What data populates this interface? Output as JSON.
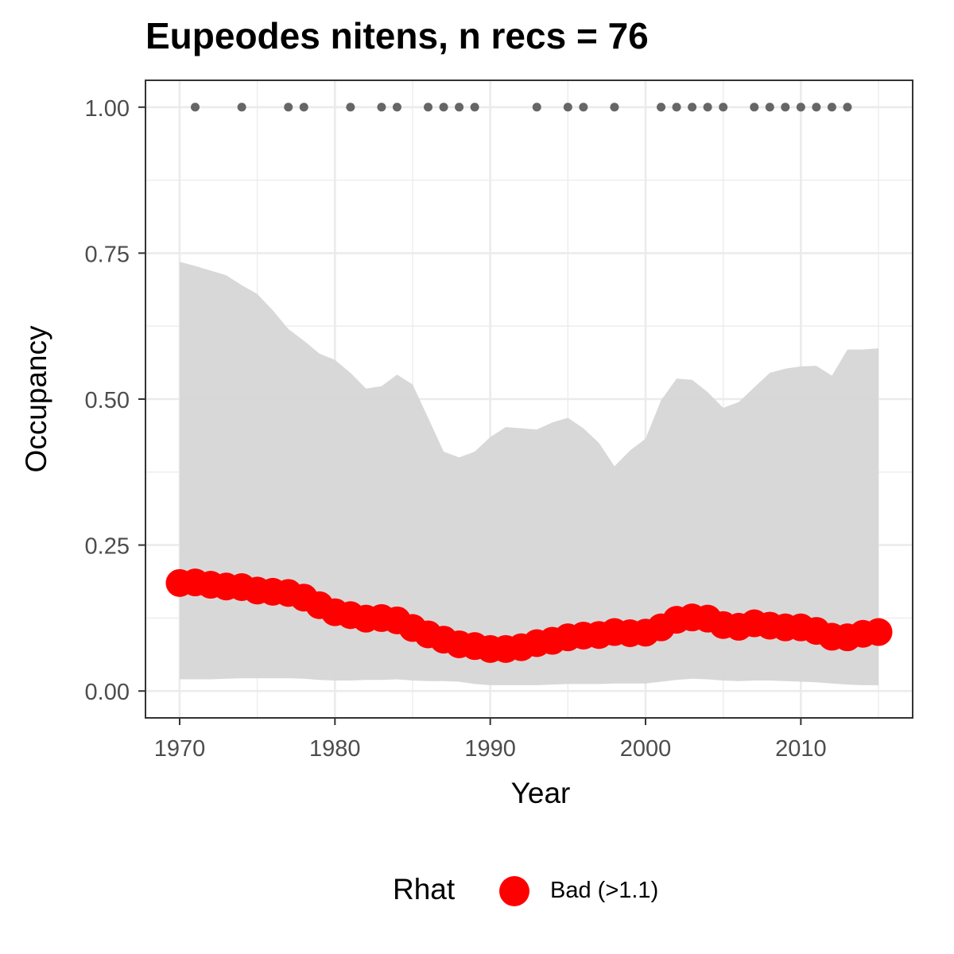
{
  "chart_data": {
    "type": "line",
    "title": "Eupeodes nitens, n recs = 76",
    "xlabel": "Year",
    "ylabel": "Occupancy",
    "xlim": [
      1967.8,
      1973.6
    ],
    "ylim": [
      -0.046,
      1.046
    ],
    "x_ticks": [
      1970,
      1980,
      1990,
      2000,
      2010
    ],
    "x_tick_labels": [
      "1970",
      "1980",
      "1990",
      "2000",
      "2010"
    ],
    "y_ticks": [
      0,
      0.25,
      0.5,
      0.75,
      1.0
    ],
    "y_tick_labels": [
      "0.00",
      "0.25",
      "0.50",
      "0.75",
      "1.00"
    ],
    "grid": true,
    "legend": {
      "position": "bottom",
      "title": "Rhat",
      "entries": [
        {
          "label": "Bad (>1.1)",
          "color": "#ff0000"
        }
      ]
    },
    "colors": {
      "mean": "#ff0000",
      "ribbon": "#d6d6d6",
      "records": "#666666",
      "grid": "#ebebeb",
      "border": "#333333"
    },
    "years": [
      1970,
      1971,
      1972,
      1973,
      1974,
      1975,
      1976,
      1977,
      1978,
      1979,
      1980,
      1981,
      1982,
      1983,
      1984,
      1985,
      1986,
      1987,
      1988,
      1989,
      1990,
      1991,
      1992,
      1993,
      1994,
      1995,
      1996,
      1997,
      1998,
      1999,
      2000,
      2001,
      2002,
      2003,
      2004,
      2005,
      2006,
      2007,
      2008,
      2009,
      2010,
      2011,
      2012,
      2013,
      2014,
      2015
    ],
    "series": [
      {
        "name": "Rhat: Bad (>1.1)",
        "role": "mean",
        "values": [
          0.185,
          0.186,
          0.182,
          0.179,
          0.178,
          0.172,
          0.17,
          0.168,
          0.16,
          0.147,
          0.135,
          0.13,
          0.124,
          0.125,
          0.121,
          0.108,
          0.097,
          0.088,
          0.08,
          0.077,
          0.072,
          0.072,
          0.075,
          0.082,
          0.086,
          0.092,
          0.095,
          0.096,
          0.101,
          0.099,
          0.1,
          0.109,
          0.122,
          0.126,
          0.124,
          0.113,
          0.11,
          0.116,
          0.112,
          0.109,
          0.109,
          0.103,
          0.093,
          0.092,
          0.098,
          0.101
        ]
      },
      {
        "role": "lower",
        "values": [
          0.02,
          0.02,
          0.02,
          0.021,
          0.022,
          0.022,
          0.022,
          0.022,
          0.021,
          0.019,
          0.018,
          0.018,
          0.019,
          0.019,
          0.02,
          0.018,
          0.017,
          0.017,
          0.016,
          0.012,
          0.01,
          0.01,
          0.01,
          0.01,
          0.011,
          0.012,
          0.012,
          0.012,
          0.013,
          0.013,
          0.013,
          0.016,
          0.019,
          0.021,
          0.02,
          0.018,
          0.017,
          0.018,
          0.018,
          0.017,
          0.016,
          0.015,
          0.013,
          0.011,
          0.01,
          0.01
        ]
      },
      {
        "role": "upper",
        "values": [
          0.735,
          0.728,
          0.72,
          0.712,
          0.695,
          0.68,
          0.652,
          0.62,
          0.6,
          0.578,
          0.567,
          0.545,
          0.518,
          0.522,
          0.542,
          0.525,
          0.468,
          0.41,
          0.4,
          0.41,
          0.435,
          0.452,
          0.45,
          0.448,
          0.46,
          0.468,
          0.45,
          0.425,
          0.385,
          0.412,
          0.432,
          0.498,
          0.535,
          0.533,
          0.512,
          0.485,
          0.495,
          0.52,
          0.545,
          0.552,
          0.556,
          0.557,
          0.54,
          0.585,
          0.585,
          0.587
        ]
      }
    ],
    "record_years": [
      1971,
      1974,
      1977,
      1978,
      1981,
      1983,
      1984,
      1986,
      1987,
      1988,
      1989,
      1993,
      1995,
      1996,
      1998,
      2001,
      2002,
      2003,
      2004,
      2005,
      2007,
      2008,
      2009,
      2010,
      2011,
      2012,
      2013
    ],
    "record_value": 1.0
  }
}
